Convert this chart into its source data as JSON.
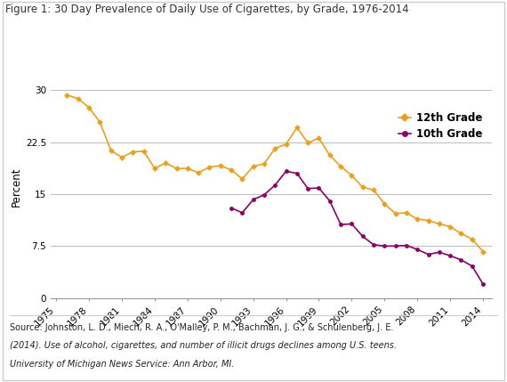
{
  "title": "Figure 1: 30 Day Prevalence of Daily Use of Cigarettes, by Grade, 1976-2014",
  "ylabel": "Percent",
  "source_line1": "Source: Johnston, L. D., Miech, R. A., O'Malley, P. M., Bachman, J. G., & Schulenberg, J. E.",
  "source_line2": "(2014). Use of alcohol, cigarettes, and number of illicit drugs declines among U.S. teens.",
  "source_line3": "University of Michigan News Service: Ann Arbor, MI.",
  "grade12_years": [
    1976,
    1977,
    1978,
    1979,
    1980,
    1981,
    1982,
    1983,
    1984,
    1985,
    1986,
    1987,
    1988,
    1989,
    1990,
    1991,
    1992,
    1993,
    1994,
    1995,
    1996,
    1997,
    1998,
    1999,
    2000,
    2001,
    2002,
    2003,
    2004,
    2005,
    2006,
    2007,
    2008,
    2009,
    2010,
    2011,
    2012,
    2013,
    2014
  ],
  "grade12_values": [
    29.3,
    28.8,
    27.5,
    25.4,
    21.3,
    20.3,
    21.1,
    21.2,
    18.7,
    19.5,
    18.7,
    18.7,
    18.1,
    18.9,
    19.1,
    18.5,
    17.2,
    19.0,
    19.4,
    21.6,
    22.2,
    24.6,
    22.4,
    23.1,
    20.6,
    19.0,
    17.7,
    16.0,
    15.6,
    13.6,
    12.2,
    12.3,
    11.4,
    11.2,
    10.7,
    10.3,
    9.3,
    8.5,
    6.7
  ],
  "grade10_years": [
    1991,
    1992,
    1993,
    1994,
    1995,
    1996,
    1997,
    1998,
    1999,
    2000,
    2001,
    2002,
    2003,
    2004,
    2005,
    2006,
    2007,
    2008,
    2009,
    2010,
    2011,
    2012,
    2013,
    2014
  ],
  "grade10_values": [
    13.0,
    12.3,
    14.2,
    14.9,
    16.3,
    18.3,
    18.0,
    15.8,
    15.9,
    14.0,
    10.6,
    10.7,
    8.9,
    7.7,
    7.5,
    7.5,
    7.6,
    7.0,
    6.3,
    6.6,
    6.1,
    5.5,
    4.6,
    2.0
  ],
  "grade12_color": "#E8A020",
  "grade10_color": "#8B0066",
  "ylim": [
    0,
    32
  ],
  "yticks": [
    0,
    7.5,
    15,
    22.5,
    30
  ],
  "xticks": [
    1975,
    1978,
    1981,
    1984,
    1987,
    1990,
    1993,
    1996,
    1999,
    2002,
    2005,
    2008,
    2011,
    2014
  ],
  "xlim": [
    1974.5,
    2014.8
  ],
  "bg_color": "#FFFFFF",
  "title_fontsize": 8.5,
  "ylabel_fontsize": 8.5,
  "tick_fontsize": 7.5,
  "legend_fontsize": 8.5,
  "source_fontsize": 7.0
}
